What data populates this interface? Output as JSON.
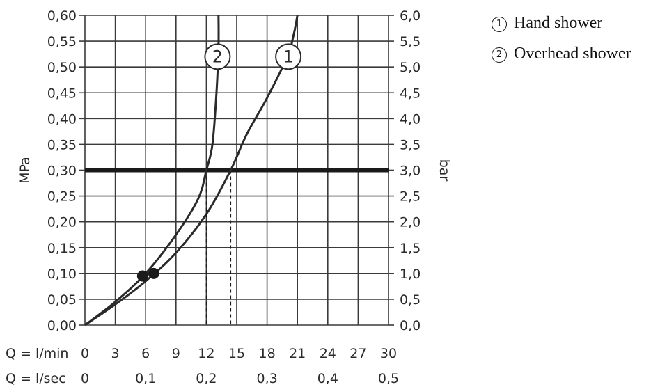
{
  "chart_data": {
    "type": "line",
    "y_left": {
      "label": "MPa",
      "range": [
        0.0,
        0.6
      ],
      "ticks": [
        "0,00",
        "0,05",
        "0,10",
        "0,15",
        "0,20",
        "0,25",
        "0,30",
        "0,35",
        "0,40",
        "0,45",
        "0,50",
        "0,55",
        "0,60"
      ]
    },
    "y_right": {
      "label": "bar",
      "range": [
        0.0,
        6.0
      ],
      "ticks": [
        "0,0",
        "0,5",
        "1,0",
        "1,5",
        "2,0",
        "2,5",
        "3,0",
        "3,5",
        "4,0",
        "4,5",
        "5,0",
        "5,5",
        "6,0"
      ]
    },
    "x_lmin": {
      "label": "Q = l/min",
      "range": [
        0,
        30
      ],
      "ticks": [
        "0",
        "3",
        "6",
        "9",
        "12",
        "15",
        "18",
        "21",
        "24",
        "27",
        "30"
      ]
    },
    "x_lsec": {
      "label": "Q = l/sec",
      "ticks": [
        "0",
        "0,1",
        "0,2",
        "0,3",
        "0,4",
        "0,5"
      ]
    },
    "grid": true,
    "reference_line": {
      "y": 0.3
    },
    "series": [
      {
        "name": "Hand shower",
        "badge": "1",
        "x": [
          0,
          3,
          6,
          9,
          12,
          14.4,
          16,
          18,
          20,
          20.6,
          21.0
        ],
        "y": [
          0.0,
          0.04,
          0.085,
          0.14,
          0.215,
          0.3,
          0.37,
          0.44,
          0.52,
          0.56,
          0.6
        ],
        "marker": {
          "x": 6.8,
          "y": 0.1
        },
        "dashed_drop_x": 14.4
      },
      {
        "name": "Overhead shower",
        "badge": "2",
        "x": [
          0,
          3,
          6,
          9,
          11.2,
          12,
          12.6,
          13.0,
          13.2,
          13.2
        ],
        "y": [
          0.0,
          0.045,
          0.1,
          0.175,
          0.245,
          0.3,
          0.35,
          0.45,
          0.54,
          0.6
        ],
        "marker": {
          "x": 5.7,
          "y": 0.095
        },
        "dashed_drop_x": 12.0
      }
    ]
  },
  "legend": [
    {
      "mark": "1",
      "label": "Hand shower"
    },
    {
      "mark": "2",
      "label": "Overhead shower"
    }
  ]
}
